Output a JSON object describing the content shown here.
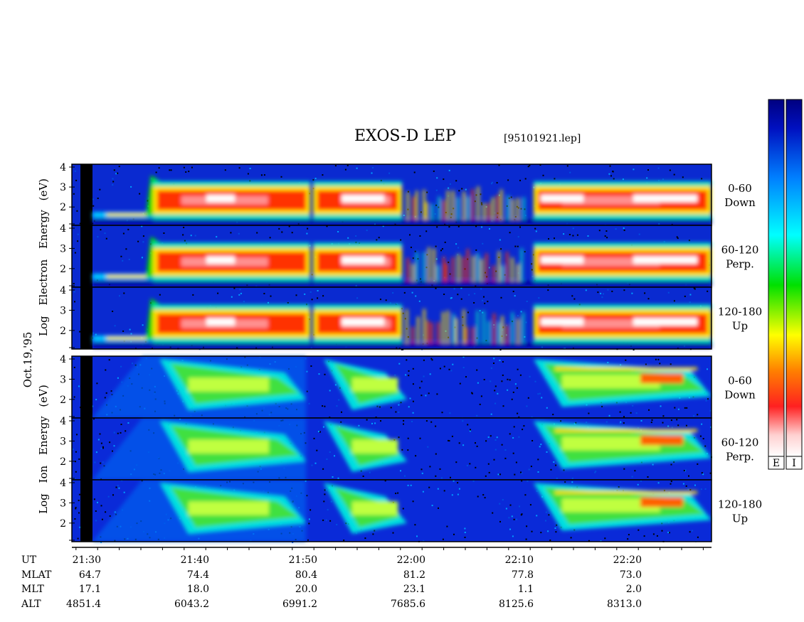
{
  "chart_data": {
    "type": "heatmap",
    "title": "EXOS-D LEP",
    "file_label": "[95101921.lep]",
    "date_label": "Oct.19,'95",
    "groups": [
      {
        "species": "Electron",
        "ylabel_lines": [
          "Log",
          "Electron",
          "Energy",
          "(eV)"
        ],
        "panels": [
          {
            "label_top": "0-60",
            "label_bottom": "Down"
          },
          {
            "label_top": "60-120",
            "label_bottom": "Perp."
          },
          {
            "label_top": "120-180",
            "label_bottom": "Up"
          }
        ]
      },
      {
        "species": "Ion",
        "ylabel_lines": [
          "Log",
          "Ion",
          "Energy",
          "(eV)"
        ],
        "panels": [
          {
            "label_top": "0-60",
            "label_bottom": "Down"
          },
          {
            "label_top": "60-120",
            "label_bottom": "Perp."
          },
          {
            "label_top": "120-180",
            "label_bottom": "Up"
          }
        ]
      }
    ],
    "y_ticks": [
      "4",
      "3",
      "2"
    ],
    "ylim": [
      1,
      4
    ],
    "x_ticks": [
      "21:30",
      "21:40",
      "21:50",
      "22:00",
      "22:10",
      "22:20"
    ],
    "colorbars": [
      {
        "label": "E"
      },
      {
        "label": "I"
      }
    ],
    "ephemeris": [
      {
        "name": "UT",
        "values": [
          "21:30",
          "21:40",
          "21:50",
          "22:00",
          "22:10",
          "22:20"
        ]
      },
      {
        "name": "MLAT",
        "values": [
          "64.7",
          "74.4",
          "80.4",
          "81.2",
          "77.8",
          "73.0"
        ]
      },
      {
        "name": "MLT",
        "values": [
          "17.1",
          "18.0",
          "20.0",
          "23.1",
          "1.1",
          "2.0"
        ]
      },
      {
        "name": "ALT",
        "values": [
          "4851.4",
          "6043.2",
          "6991.2",
          "7685.6",
          "8125.6",
          "8313.0"
        ]
      }
    ]
  }
}
